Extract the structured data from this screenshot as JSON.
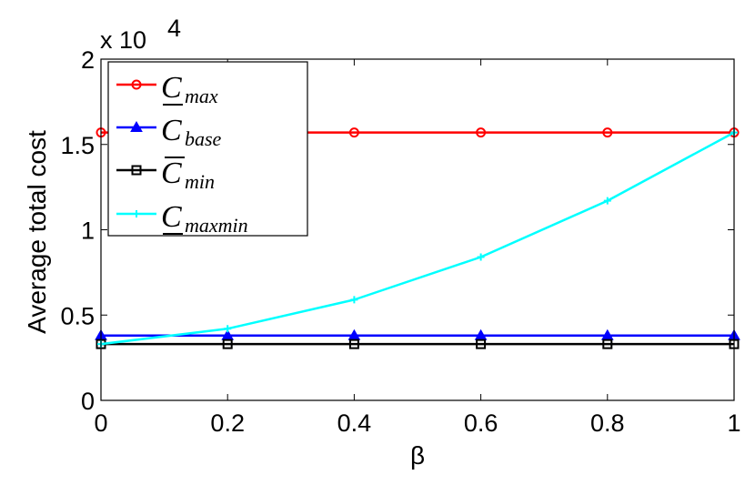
{
  "chart_data": {
    "type": "line",
    "xlabel": "β",
    "ylabel": "Average total cost",
    "y_multiplier_label": "x 10",
    "y_multiplier_exponent": "4",
    "x": [
      0,
      0.2,
      0.4,
      0.6,
      0.8,
      1
    ],
    "x_tick_labels": [
      "0",
      "0.2",
      "0.4",
      "0.6",
      "0.8",
      "1"
    ],
    "y_tick_values": [
      0,
      0.5,
      1,
      1.5,
      2
    ],
    "y_tick_labels": [
      "0",
      "0.5",
      "1",
      "1.5",
      "2"
    ],
    "xlim": [
      0,
      1
    ],
    "ylim": [
      0,
      2
    ],
    "grid": false,
    "legend_position": "top-left",
    "series": [
      {
        "name_base": "C",
        "name_sub": "max",
        "bar": "under",
        "color": "#ff0000",
        "marker": "circle",
        "values": [
          1.57,
          1.57,
          1.57,
          1.57,
          1.57,
          1.57
        ]
      },
      {
        "name_base": "C",
        "name_sub": "base",
        "bar": "none",
        "color": "#0000ff",
        "marker": "triangle",
        "values": [
          0.38,
          0.38,
          0.38,
          0.38,
          0.38,
          0.38
        ]
      },
      {
        "name_base": "C",
        "name_sub": "min",
        "bar": "over",
        "color": "#000000",
        "marker": "square",
        "values": [
          0.33,
          0.33,
          0.33,
          0.33,
          0.33,
          0.33
        ]
      },
      {
        "name_base": "C",
        "name_sub": "maxmin",
        "bar": "under",
        "color": "#00ffff",
        "marker": "plus",
        "values": [
          0.33,
          0.42,
          0.59,
          0.84,
          1.17,
          1.57
        ]
      }
    ]
  }
}
